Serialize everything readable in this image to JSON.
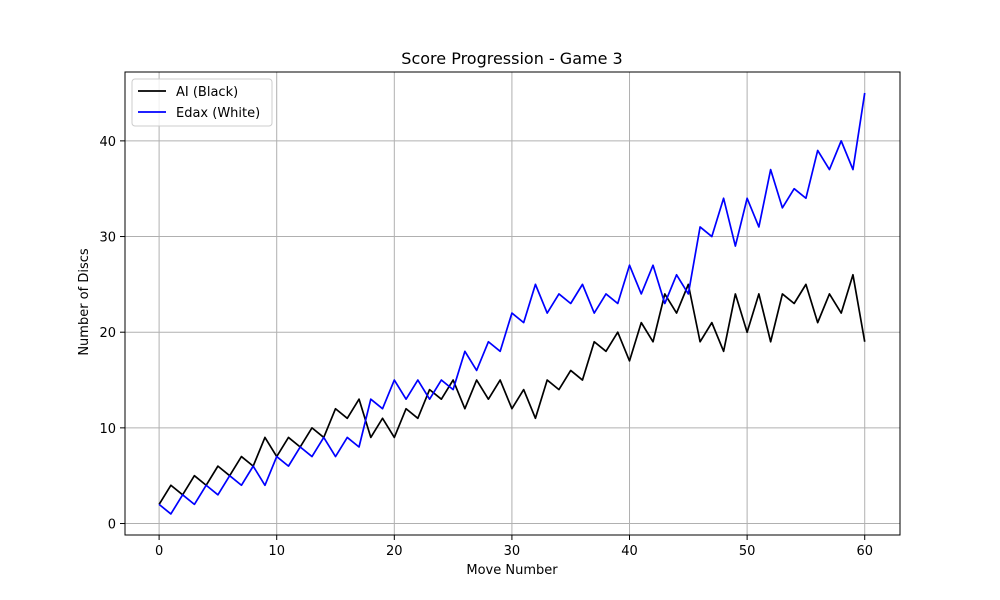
{
  "chart_data": {
    "type": "line",
    "title": "Score Progression - Game 3",
    "xlabel": "Move Number",
    "ylabel": "Number of Discs",
    "xlim": [
      -2.9,
      63.0
    ],
    "ylim": [
      -1.2,
      47.2
    ],
    "xticks": [
      0,
      10,
      20,
      30,
      40,
      50,
      60
    ],
    "yticks": [
      0,
      10,
      20,
      30,
      40
    ],
    "grid": true,
    "legend_position": "upper-left",
    "x": [
      0,
      1,
      2,
      3,
      4,
      5,
      6,
      7,
      8,
      9,
      10,
      11,
      12,
      13,
      14,
      15,
      16,
      17,
      18,
      19,
      20,
      21,
      22,
      23,
      24,
      25,
      26,
      27,
      28,
      29,
      30,
      31,
      32,
      33,
      34,
      35,
      36,
      37,
      38,
      39,
      40,
      41,
      42,
      43,
      44,
      45,
      46,
      47,
      48,
      49,
      50,
      51,
      52,
      53,
      54,
      55,
      56,
      57,
      58,
      59,
      60
    ],
    "series": [
      {
        "name": "AI (Black)",
        "color": "#000000",
        "values": [
          2,
          4,
          3,
          5,
          4,
          6,
          5,
          7,
          6,
          9,
          7,
          9,
          8,
          10,
          9,
          12,
          11,
          13,
          9,
          11,
          9,
          12,
          11,
          14,
          13,
          15,
          12,
          15,
          13,
          15,
          12,
          14,
          11,
          15,
          14,
          16,
          15,
          19,
          18,
          20,
          17,
          21,
          19,
          24,
          22,
          25,
          19,
          21,
          18,
          24,
          20,
          24,
          19,
          24,
          23,
          25,
          21,
          24,
          22,
          26,
          19
        ]
      },
      {
        "name": "Edax (White)",
        "color": "#0000ff",
        "values": [
          2,
          1,
          3,
          2,
          4,
          3,
          5,
          4,
          6,
          4,
          7,
          6,
          8,
          7,
          9,
          7,
          9,
          8,
          13,
          12,
          15,
          13,
          15,
          13,
          15,
          14,
          18,
          16,
          19,
          18,
          22,
          21,
          25,
          22,
          24,
          23,
          25,
          22,
          24,
          23,
          27,
          24,
          27,
          23,
          26,
          24,
          31,
          30,
          34,
          29,
          34,
          31,
          37,
          33,
          35,
          34,
          39,
          37,
          40,
          37,
          45
        ]
      }
    ]
  }
}
